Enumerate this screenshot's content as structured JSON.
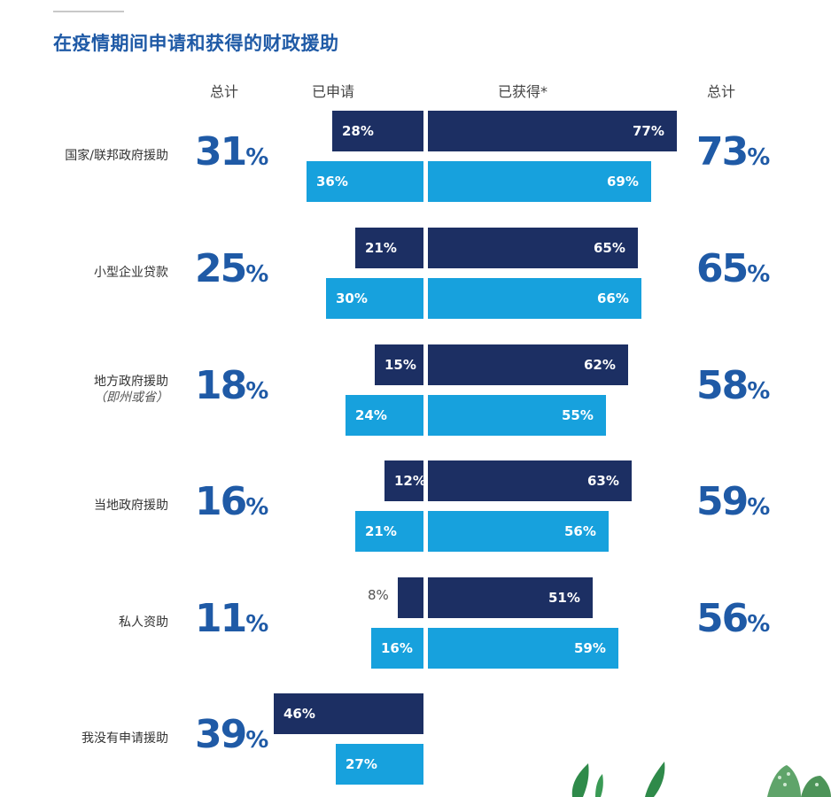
{
  "title": "在疫情期间申请和获得的财政援助",
  "headers": {
    "total_left": "总计",
    "applied": "已申请",
    "received": "已获得*",
    "total_right": "总计"
  },
  "chart_data": {
    "type": "bar",
    "title": "在疫情期间申请和获得的财政援助",
    "orientation": "horizontal-diverging",
    "categories": [
      "国家/联邦政府援助",
      "小型企业贷款",
      "地方政府援助",
      "当地政府援助",
      "私人资助",
      "我没有申请援助"
    ],
    "category_sublabels": [
      "",
      "",
      "（即州或省）",
      "",
      "",
      ""
    ],
    "total_applied": [
      31,
      25,
      18,
      16,
      11,
      39
    ],
    "total_received": [
      73,
      65,
      58,
      59,
      56,
      null
    ],
    "series": [
      {
        "group": "已申请",
        "color": "#1c2f63",
        "values": [
          28,
          21,
          15,
          12,
          8,
          46
        ]
      },
      {
        "group": "已申请",
        "color": "#17a1dd",
        "values": [
          36,
          30,
          24,
          21,
          16,
          27
        ]
      },
      {
        "group": "已获得*",
        "color": "#1c2f63",
        "values": [
          77,
          65,
          62,
          63,
          51,
          null
        ]
      },
      {
        "group": "已获得*",
        "color": "#17a1dd",
        "values": [
          69,
          66,
          55,
          56,
          59,
          null
        ]
      }
    ],
    "unit": "%"
  }
}
